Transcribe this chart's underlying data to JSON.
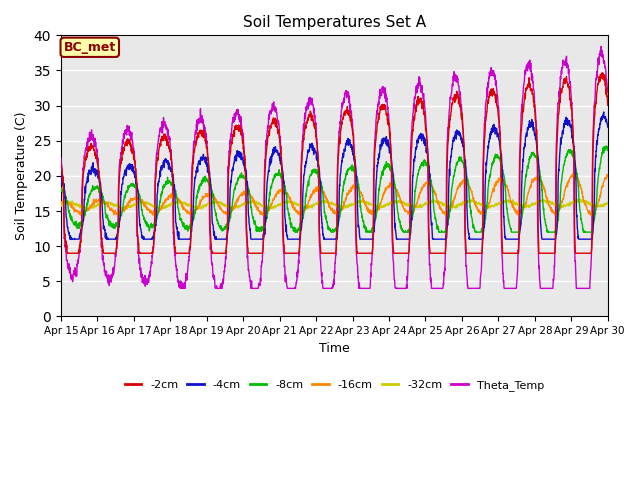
{
  "title": "Soil Temperatures Set A",
  "xlabel": "Time",
  "ylabel": "Soil Temperature (C)",
  "ylim": [
    0,
    40
  ],
  "background_color": "#e8e8e8",
  "annotation": "BC_met",
  "legend": [
    "-2cm",
    "-4cm",
    "-8cm",
    "-16cm",
    "-32cm",
    "Theta_Temp"
  ],
  "colors": [
    "#dd0000",
    "#1111cc",
    "#00bb00",
    "#ff8800",
    "#cccc00",
    "#cc00cc"
  ],
  "xtick_labels": [
    "Apr 15",
    "Apr 16",
    "Apr 17",
    "Apr 18",
    "Apr 19",
    "Apr 20",
    "Apr 21",
    "Apr 22",
    "Apr 23",
    "Apr 24",
    "Apr 25",
    "Apr 26",
    "Apr 27",
    "Apr 28",
    "Apr 29",
    "Apr 30"
  ],
  "n_days": 15,
  "points_per_day": 144
}
